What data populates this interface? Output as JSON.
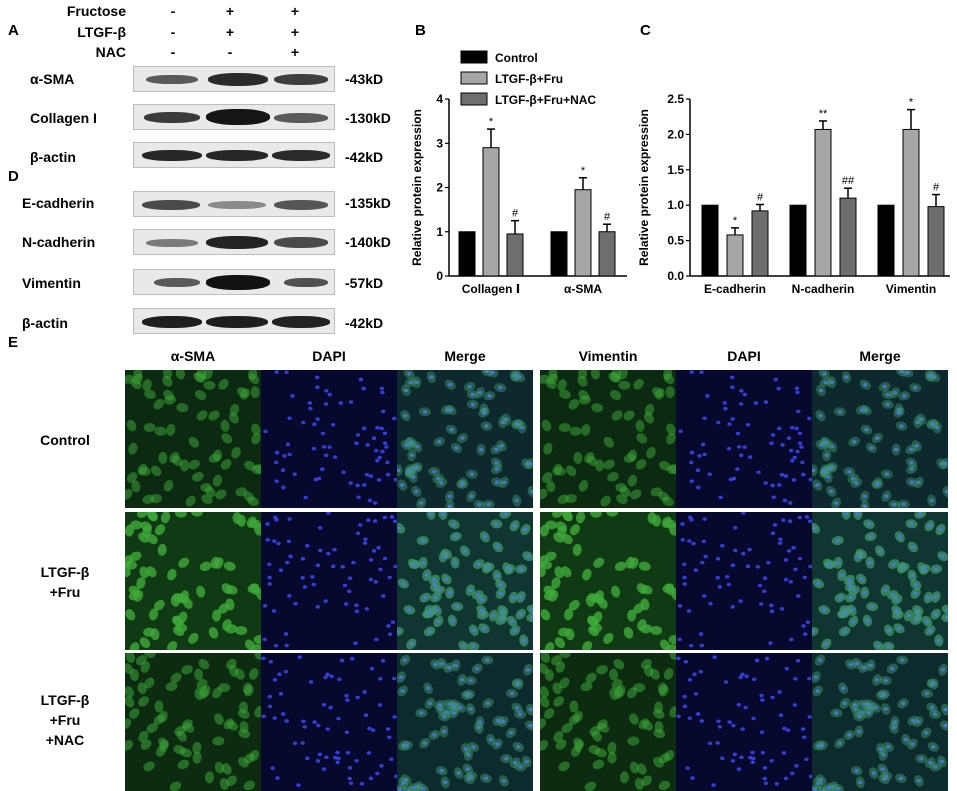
{
  "panels": {
    "a": "A",
    "b": "B",
    "c": "C",
    "d": "D",
    "e": "E"
  },
  "conditions": {
    "labels": [
      "Fructose",
      "LTGF-β",
      "NAC"
    ],
    "values": [
      [
        "-",
        "+",
        "+"
      ],
      [
        "-",
        "+",
        "+"
      ],
      [
        "-",
        "-",
        "+"
      ]
    ]
  },
  "blots_a": [
    {
      "name": "α-SMA",
      "kd": "-43kD"
    },
    {
      "name": "Collagen I",
      "kd": "-130kD"
    },
    {
      "name": "β-actin",
      "kd": "-42kD"
    }
  ],
  "blots_d": [
    {
      "name": "E-cadherin",
      "kd": "-135kD"
    },
    {
      "name": "N-cadherin",
      "kd": "-140kD"
    },
    {
      "name": "Vimentin",
      "kd": "-57kD"
    },
    {
      "name": "β-actin",
      "kd": "-42kD"
    }
  ],
  "chart_data": [
    {
      "type": "bar",
      "panel": "B",
      "categories": [
        "Collagen Ⅰ",
        "α-SMA"
      ],
      "series": [
        {
          "name": "Control",
          "values": [
            1.0,
            1.0
          ],
          "errors": [
            0,
            0
          ],
          "marks": [
            "",
            ""
          ]
        },
        {
          "name": "LTGF-β+Fru",
          "values": [
            2.9,
            1.95
          ],
          "errors": [
            0.42,
            0.27
          ],
          "marks": [
            "*",
            "*"
          ]
        },
        {
          "name": "LTGF-β+Fru+NAC",
          "values": [
            0.95,
            1.0
          ],
          "errors": [
            0.3,
            0.17
          ],
          "marks": [
            "#",
            "#"
          ]
        }
      ],
      "ylabel": "Relative protein expression",
      "ylim": [
        0,
        4
      ],
      "yticks": [
        "0",
        "1",
        "2",
        "3",
        "4"
      ],
      "legend": "top"
    },
    {
      "type": "bar",
      "panel": "C",
      "categories": [
        "E-cadherin",
        "N-cadherin",
        "Vimentin"
      ],
      "series": [
        {
          "name": "Control",
          "values": [
            1.0,
            1.0,
            1.0
          ],
          "errors": [
            0,
            0,
            0
          ],
          "marks": [
            "",
            "",
            ""
          ]
        },
        {
          "name": "LTGF-β+Fru",
          "values": [
            0.58,
            2.07,
            2.07
          ],
          "errors": [
            0.1,
            0.12,
            0.28
          ],
          "marks": [
            "*",
            "**",
            "*"
          ]
        },
        {
          "name": "LTGF-β+Fru+NAC",
          "values": [
            0.92,
            1.1,
            0.98
          ],
          "errors": [
            0.09,
            0.14,
            0.17
          ],
          "marks": [
            "#",
            "##",
            "#"
          ]
        }
      ],
      "ylabel": "Relative protein expression",
      "ylim": [
        0,
        2.5
      ],
      "yticks": [
        "0.0",
        "0.5",
        "1.0",
        "1.5",
        "2.0",
        "2.5"
      ]
    }
  ],
  "series_colors": [
    "#000000",
    "#a6a6a6",
    "#6e6e6e"
  ],
  "micrographs": {
    "headers": [
      "α-SMA",
      "DAPI",
      "Merge",
      "Vimentin",
      "DAPI",
      "Merge"
    ],
    "rows": [
      {
        "line1": "Control",
        "line2": "",
        "line3": ""
      },
      {
        "line1": "LTGF-β",
        "line2": "+Fru",
        "line3": ""
      },
      {
        "line1": "LTGF-β",
        "line2": "+Fru",
        "line3": "+NAC"
      }
    ]
  }
}
